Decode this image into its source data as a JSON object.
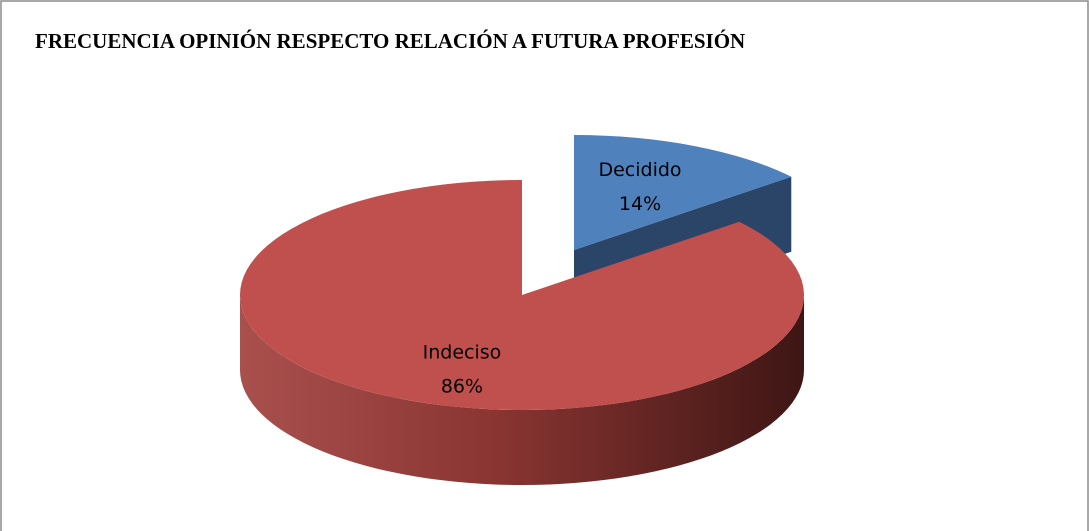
{
  "chart_data": {
    "type": "pie",
    "title": "FRECUENCIA OPINIÓN RESPECTO RELACIÓN A FUTURA PROFESIÓN",
    "categories": [
      "Decidido",
      "Indeciso"
    ],
    "values": [
      14,
      86
    ],
    "value_labels": [
      "14%",
      "86%"
    ],
    "colors": [
      "#4f81bd",
      "#c0504d"
    ]
  }
}
